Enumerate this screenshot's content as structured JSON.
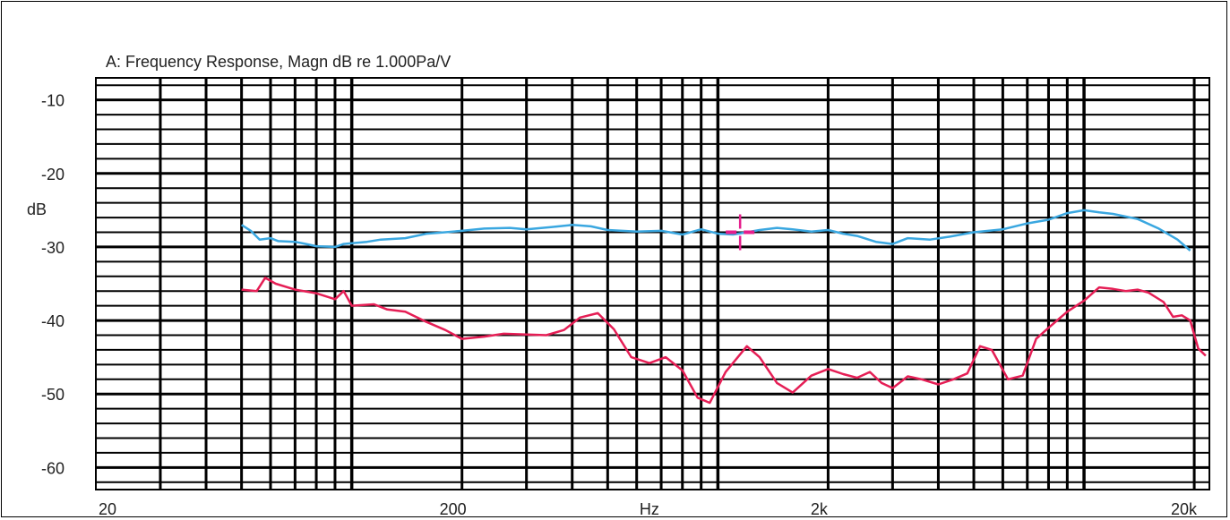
{
  "chart_data": {
    "type": "line",
    "title": "A: Frequency Response, Magn dB re 1.000Pa/V",
    "ylabel": "dB",
    "xlabel": "Hz",
    "x_scale": "log",
    "xlim": [
      20,
      22000
    ],
    "ylim": [
      -63,
      -7
    ],
    "grid": true,
    "y_ticks": [
      {
        "value": -10,
        "label": "-10"
      },
      {
        "value": -20,
        "label": "-20"
      },
      {
        "value": -30,
        "label": "-30"
      },
      {
        "value": -40,
        "label": "-40"
      },
      {
        "value": -50,
        "label": "-50"
      },
      {
        "value": -60,
        "label": "-60"
      }
    ],
    "x_ticks": [
      {
        "value": 20,
        "label": "20"
      },
      {
        "value": 200,
        "label": "200"
      },
      {
        "value": 2000,
        "label": "2k"
      },
      {
        "value": 20000,
        "label": "20k"
      }
    ],
    "x_unit_position_value": 650,
    "series": [
      {
        "color": "#3aa7e0",
        "points": [
          [
            50,
            -27.0
          ],
          [
            53,
            -27.8
          ],
          [
            56,
            -29.0
          ],
          [
            60,
            -28.8
          ],
          [
            63,
            -29.2
          ],
          [
            70,
            -29.3
          ],
          [
            75,
            -29.6
          ],
          [
            80,
            -29.9
          ],
          [
            90,
            -30.0
          ],
          [
            95,
            -29.6
          ],
          [
            100,
            -29.5
          ],
          [
            110,
            -29.3
          ],
          [
            120,
            -29.0
          ],
          [
            140,
            -28.8
          ],
          [
            160,
            -28.2
          ],
          [
            180,
            -28.0
          ],
          [
            200,
            -27.8
          ],
          [
            230,
            -27.5
          ],
          [
            270,
            -27.4
          ],
          [
            300,
            -27.6
          ],
          [
            350,
            -27.3
          ],
          [
            400,
            -27.0
          ],
          [
            450,
            -27.2
          ],
          [
            500,
            -27.7
          ],
          [
            600,
            -27.9
          ],
          [
            700,
            -27.8
          ],
          [
            800,
            -28.3
          ],
          [
            900,
            -27.6
          ],
          [
            1000,
            -28.2
          ],
          [
            1100,
            -28.3
          ],
          [
            1200,
            -28.0
          ],
          [
            1300,
            -27.7
          ],
          [
            1450,
            -27.4
          ],
          [
            1600,
            -27.6
          ],
          [
            1800,
            -27.9
          ],
          [
            2000,
            -27.7
          ],
          [
            2200,
            -28.2
          ],
          [
            2400,
            -28.5
          ],
          [
            2700,
            -29.3
          ],
          [
            3000,
            -29.6
          ],
          [
            3300,
            -28.8
          ],
          [
            3800,
            -29.0
          ],
          [
            4300,
            -28.6
          ],
          [
            5000,
            -28.0
          ],
          [
            6000,
            -27.6
          ],
          [
            7000,
            -26.8
          ],
          [
            8000,
            -26.3
          ],
          [
            9000,
            -25.4
          ],
          [
            10000,
            -25.0
          ],
          [
            11000,
            -25.3
          ],
          [
            12000,
            -25.5
          ],
          [
            14000,
            -26.2
          ],
          [
            16000,
            -27.5
          ],
          [
            18000,
            -29.0
          ],
          [
            19500,
            -30.5
          ]
        ]
      },
      {
        "color": "#e51e55",
        "points": [
          [
            50,
            -35.8
          ],
          [
            55,
            -36.0
          ],
          [
            58,
            -34.2
          ],
          [
            62,
            -35.0
          ],
          [
            70,
            -35.8
          ],
          [
            80,
            -36.3
          ],
          [
            90,
            -37.1
          ],
          [
            95,
            -36.0
          ],
          [
            100,
            -38.0
          ],
          [
            115,
            -37.8
          ],
          [
            125,
            -38.5
          ],
          [
            140,
            -38.8
          ],
          [
            160,
            -40.2
          ],
          [
            180,
            -41.3
          ],
          [
            200,
            -42.5
          ],
          [
            230,
            -42.2
          ],
          [
            260,
            -41.8
          ],
          [
            300,
            -41.9
          ],
          [
            340,
            -42.0
          ],
          [
            380,
            -41.3
          ],
          [
            420,
            -39.6
          ],
          [
            470,
            -39.0
          ],
          [
            520,
            -41.2
          ],
          [
            580,
            -45.0
          ],
          [
            650,
            -45.8
          ],
          [
            720,
            -45.0
          ],
          [
            800,
            -46.8
          ],
          [
            880,
            -50.5
          ],
          [
            950,
            -51.2
          ],
          [
            1050,
            -47.0
          ],
          [
            1200,
            -43.5
          ],
          [
            1300,
            -45.0
          ],
          [
            1450,
            -48.5
          ],
          [
            1600,
            -49.8
          ],
          [
            1800,
            -47.5
          ],
          [
            2000,
            -46.6
          ],
          [
            2200,
            -47.3
          ],
          [
            2400,
            -47.8
          ],
          [
            2600,
            -47.0
          ],
          [
            2800,
            -48.5
          ],
          [
            3000,
            -49.2
          ],
          [
            3300,
            -47.6
          ],
          [
            3600,
            -48.0
          ],
          [
            4000,
            -48.7
          ],
          [
            4400,
            -48.0
          ],
          [
            4800,
            -47.2
          ],
          [
            5200,
            -43.5
          ],
          [
            5600,
            -44.0
          ],
          [
            6200,
            -48.0
          ],
          [
            6800,
            -47.5
          ],
          [
            7400,
            -42.5
          ],
          [
            8000,
            -41.0
          ],
          [
            9000,
            -38.8
          ],
          [
            10000,
            -37.3
          ],
          [
            11000,
            -35.5
          ],
          [
            12000,
            -35.7
          ],
          [
            13000,
            -36.0
          ],
          [
            14000,
            -35.8
          ],
          [
            15000,
            -36.2
          ],
          [
            16500,
            -37.5
          ],
          [
            17500,
            -39.5
          ],
          [
            18500,
            -39.3
          ],
          [
            19500,
            -40.0
          ],
          [
            20500,
            -43.8
          ],
          [
            21500,
            -44.8
          ]
        ]
      }
    ],
    "markers": [
      {
        "type": "crosshair",
        "x": 1150,
        "y": -28.0,
        "color": "#e51e8c"
      }
    ]
  }
}
